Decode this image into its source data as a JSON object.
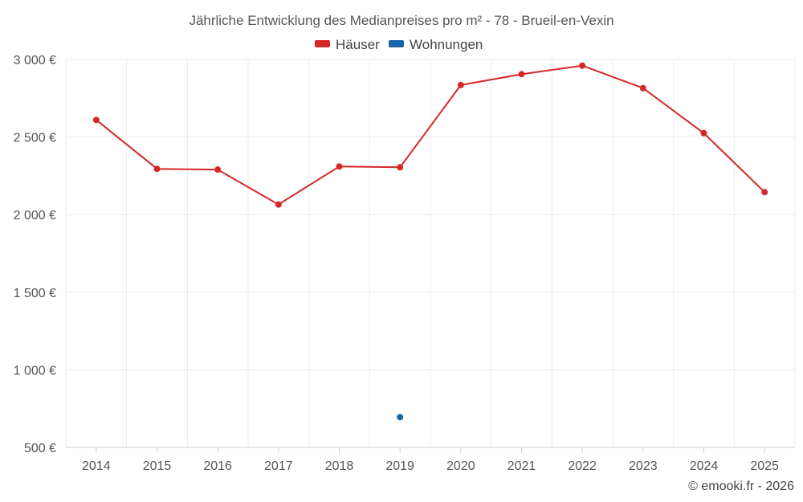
{
  "chart_data": {
    "type": "line",
    "title": "Jährliche Entwicklung des Medianpreises pro m² - 78 - Brueil-en-Vexin",
    "xlabel": "",
    "ylabel": "",
    "categories": [
      "2014",
      "2015",
      "2016",
      "2017",
      "2018",
      "2019",
      "2020",
      "2021",
      "2022",
      "2023",
      "2024",
      "2025"
    ],
    "ylim": [
      500,
      3000
    ],
    "yticks": [
      {
        "value": 500,
        "label": "500 €"
      },
      {
        "value": 1000,
        "label": "1 000 €"
      },
      {
        "value": 1500,
        "label": "1 500 €"
      },
      {
        "value": 2000,
        "label": "2 000 €"
      },
      {
        "value": 2500,
        "label": "2 500 €"
      },
      {
        "value": 3000,
        "label": "3 000 €"
      }
    ],
    "grid": true,
    "legend_position": "top-center",
    "series": [
      {
        "name": "Häuser",
        "color": "#d62728",
        "values": [
          2610,
          2295,
          2290,
          2065,
          2310,
          2305,
          2835,
          2905,
          2960,
          2815,
          2525,
          2145
        ]
      },
      {
        "name": "Wohnungen",
        "color": "#1565a8",
        "values": [
          null,
          null,
          null,
          null,
          null,
          695,
          null,
          null,
          null,
          null,
          null,
          null
        ]
      }
    ]
  },
  "credit": "© emooki.fr - 2026"
}
